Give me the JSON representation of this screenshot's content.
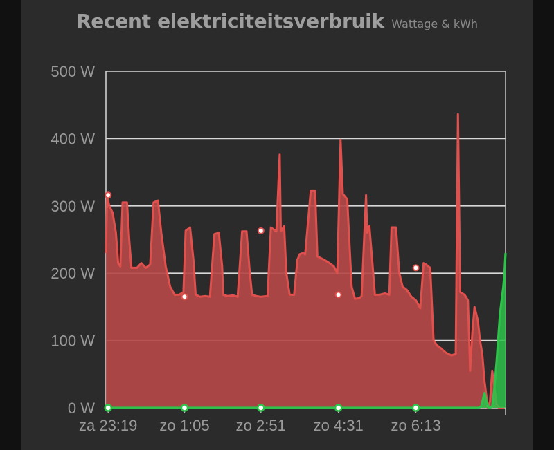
{
  "chart_data": {
    "type": "area",
    "title": "Recent elektriciteitsverbruik",
    "subtitle": "Wattage & kWh",
    "ylim": [
      0,
      500
    ],
    "y_ticks": [
      {
        "value": 0,
        "label": "0 W"
      },
      {
        "value": 100,
        "label": "100 W"
      },
      {
        "value": 200,
        "label": "200 W"
      },
      {
        "value": 300,
        "label": "300 W"
      },
      {
        "value": 400,
        "label": "400 W"
      },
      {
        "value": 500,
        "label": "500 W"
      }
    ],
    "x_ticks": [
      "za 23:19",
      "zo 1:05",
      "zo 2:51",
      "zo 4:31",
      "zo 6:13"
    ],
    "grid": true,
    "colors": {
      "wattage": "#e0504d",
      "wattage_fill": "#b44846",
      "kwh": "#2ec24a",
      "grid": "#d8d8d8"
    },
    "series": [
      {
        "values": [
          [
            0,
            230
          ],
          [
            0.1,
            315
          ],
          [
            0.3,
            300
          ],
          [
            0.6,
            290
          ],
          [
            0.9,
            260
          ],
          [
            1.1,
            215
          ],
          [
            1.3,
            210
          ],
          [
            1.5,
            305
          ],
          [
            1.9,
            305
          ],
          [
            2.1,
            250
          ],
          [
            2.3,
            208
          ],
          [
            2.8,
            208
          ],
          [
            3.2,
            215
          ],
          [
            3.6,
            208
          ],
          [
            4.0,
            213
          ],
          [
            4.3,
            305
          ],
          [
            4.7,
            308
          ],
          [
            5.0,
            260
          ],
          [
            5.4,
            210
          ],
          [
            5.8,
            180
          ],
          [
            6.2,
            168
          ],
          [
            6.6,
            168
          ],
          [
            7.0,
            172
          ],
          [
            7.2,
            263
          ],
          [
            7.6,
            268
          ],
          [
            7.9,
            220
          ],
          [
            8.1,
            168
          ],
          [
            8.5,
            165
          ],
          [
            9.0,
            166
          ],
          [
            9.4,
            165
          ],
          [
            9.8,
            258
          ],
          [
            10.2,
            260
          ],
          [
            10.5,
            210
          ],
          [
            10.6,
            168
          ],
          [
            11.0,
            166
          ],
          [
            11.5,
            167
          ],
          [
            11.9,
            165
          ],
          [
            12.3,
            262
          ],
          [
            12.7,
            262
          ],
          [
            13.0,
            200
          ],
          [
            13.2,
            168
          ],
          [
            13.6,
            166
          ],
          [
            14.0,
            165
          ],
          [
            14.6,
            166
          ],
          [
            14.9,
            268
          ],
          [
            15.4,
            262
          ],
          [
            15.7,
            376
          ],
          [
            15.8,
            262
          ],
          [
            16.1,
            270
          ],
          [
            16.3,
            200
          ],
          [
            16.6,
            168
          ],
          [
            17.0,
            168
          ],
          [
            17.3,
            220
          ],
          [
            17.5,
            228
          ],
          [
            17.8,
            230
          ],
          [
            18.0,
            228
          ],
          [
            18.5,
            322
          ],
          [
            18.9,
            322
          ],
          [
            19.1,
            225
          ],
          [
            19.7,
            220
          ],
          [
            20.2,
            215
          ],
          [
            20.6,
            210
          ],
          [
            20.9,
            200
          ],
          [
            21.2,
            398
          ],
          [
            21.4,
            318
          ],
          [
            21.8,
            310
          ],
          [
            22.2,
            180
          ],
          [
            22.5,
            162
          ],
          [
            22.9,
            163
          ],
          [
            23.1,
            166
          ],
          [
            23.5,
            316
          ],
          [
            23.6,
            260
          ],
          [
            23.8,
            270
          ],
          [
            24.0,
            230
          ],
          [
            24.3,
            168
          ],
          [
            24.7,
            168
          ],
          [
            25.2,
            170
          ],
          [
            25.6,
            168
          ],
          [
            25.8,
            268
          ],
          [
            26.2,
            268
          ],
          [
            26.5,
            200
          ],
          [
            26.8,
            180
          ],
          [
            27.2,
            175
          ],
          [
            27.6,
            165
          ],
          [
            28.0,
            160
          ],
          [
            28.4,
            148
          ],
          [
            28.7,
            215
          ],
          [
            29.0,
            212
          ],
          [
            29.3,
            208
          ],
          [
            29.6,
            100
          ],
          [
            29.9,
            93
          ],
          [
            30.3,
            88
          ],
          [
            30.7,
            82
          ],
          [
            31.2,
            78
          ],
          [
            31.6,
            80
          ],
          [
            31.8,
            436
          ],
          [
            32.0,
            172
          ],
          [
            32.4,
            168
          ],
          [
            32.7,
            160
          ],
          [
            32.9,
            55
          ],
          [
            33.1,
            110
          ],
          [
            33.3,
            150
          ],
          [
            33.6,
            130
          ],
          [
            33.8,
            100
          ],
          [
            34.0,
            80
          ],
          [
            34.2,
            40
          ],
          [
            34.5,
            0
          ],
          [
            34.7,
            10
          ],
          [
            34.9,
            55
          ],
          [
            35.1,
            30
          ],
          [
            35.3,
            5
          ],
          [
            35.5,
            0
          ],
          [
            36.0,
            0
          ]
        ]
      },
      {
        "values": [
          [
            0,
            0
          ],
          [
            33.6,
            0
          ],
          [
            33.9,
            2
          ],
          [
            34.2,
            22
          ],
          [
            34.4,
            8
          ],
          [
            34.6,
            0
          ],
          [
            34.9,
            2
          ],
          [
            35.1,
            30
          ],
          [
            35.3,
            70
          ],
          [
            35.6,
            140
          ],
          [
            35.9,
            180
          ],
          [
            36.0,
            200
          ],
          [
            36.1,
            230
          ]
        ]
      }
    ],
    "markers": [
      {
        "x": 0.2,
        "y": 316
      },
      {
        "x": 7.1,
        "y": 165
      },
      {
        "x": 14.0,
        "y": 263
      },
      {
        "x": 21.0,
        "y": 168
      },
      {
        "x": 28.0,
        "y": 208
      }
    ],
    "x_tick_positions": [
      0.2,
      7.1,
      14.0,
      21.0,
      28.0
    ],
    "x_range": [
      0,
      36.1
    ]
  }
}
